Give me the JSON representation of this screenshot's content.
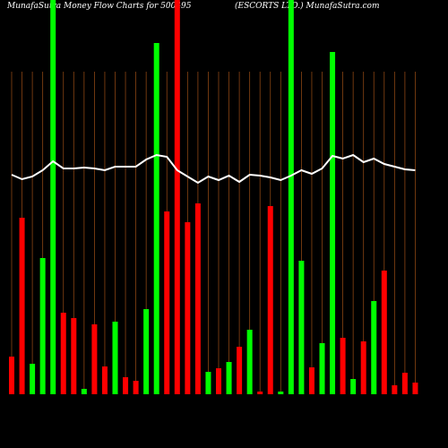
{
  "chart_data": {
    "type": "bar",
    "title": "MunafaSutra  Money Flow  Charts for 500495",
    "subtitle": "(ESCORTS LTD.) MunafaSutra.com",
    "ylim": [
      0,
      440
    ],
    "values": [
      42,
      197,
      34,
      152,
      460,
      91,
      85,
      6,
      78,
      31,
      81,
      19,
      15,
      95,
      392,
      204,
      460,
      192,
      213,
      25,
      29,
      36,
      53,
      72,
      3,
      210,
      3,
      460,
      149,
      30,
      57,
      382,
      63,
      17,
      59,
      104,
      138,
      10,
      24,
      13
    ],
    "bar_colors": [
      "#ff0000",
      "#ff0000",
      "#00ff00",
      "#00ff00",
      "#00ff00",
      "#ff0000",
      "#ff0000",
      "#00ff00",
      "#ff0000",
      "#ff0000",
      "#00ff00",
      "#ff0000",
      "#ff0000",
      "#00ff00",
      "#00ff00",
      "#ff0000",
      "#ff0000",
      "#ff0000",
      "#ff0000",
      "#00ff00",
      "#ff0000",
      "#00ff00",
      "#ff0000",
      "#00ff00",
      "#ff0000",
      "#ff0000",
      "#00ff00",
      "#00ff00",
      "#00ff00",
      "#ff0000",
      "#00ff00",
      "#00ff00",
      "#ff0000",
      "#00ff00",
      "#ff0000",
      "#00ff00",
      "#ff0000",
      "#ff0000",
      "#ff0000",
      "#ff0000"
    ],
    "line": {
      "color": "#ffffff",
      "values": [
        245,
        240,
        243,
        250,
        260,
        252,
        252,
        253,
        252,
        250,
        254,
        254,
        254,
        262,
        267,
        265,
        250,
        243,
        236,
        243,
        239,
        244,
        237,
        245,
        244,
        242,
        239,
        244,
        250,
        246,
        252,
        266,
        263,
        267,
        259,
        263,
        257,
        254,
        251,
        250
      ]
    },
    "grid_color": "#8b4513"
  }
}
